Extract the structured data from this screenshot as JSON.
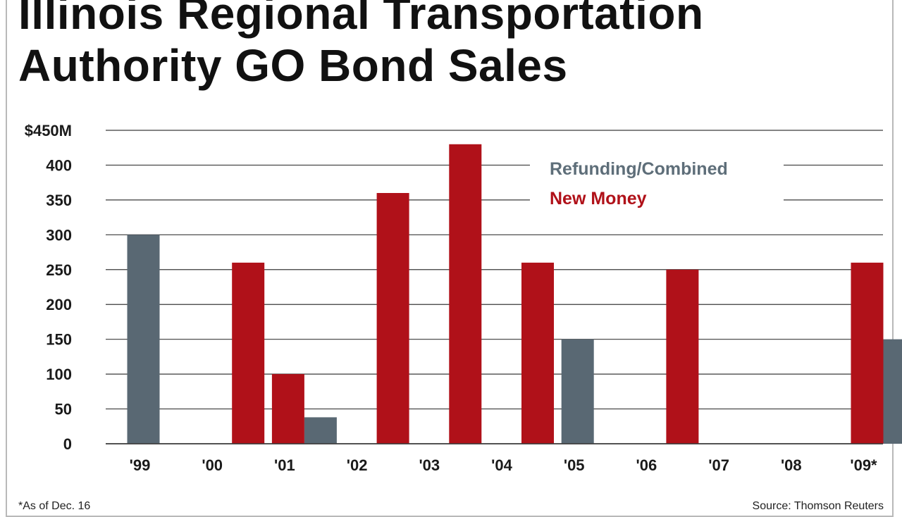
{
  "title_lines": [
    "Illinois Regional Transportation",
    "Authority GO Bond Sales"
  ],
  "footnote": "*As of Dec. 16",
  "source": "Source: Thomson Reuters",
  "colors": {
    "refunding": "#596873",
    "new_money": "#b01119",
    "refunding_text": "#5e6e79",
    "new_money_text": "#b01119",
    "grid": "#3a3a3a"
  },
  "chart_data": {
    "type": "bar",
    "categories": [
      "'99",
      "'00",
      "'01",
      "'02",
      "'03",
      "'04",
      "'05",
      "'06",
      "'07",
      "'08",
      "'09*"
    ],
    "series": [
      {
        "name": "Refunding/Combined",
        "values": [
          300,
          0,
          38,
          0,
          0,
          0,
          150,
          0,
          0,
          0,
          150
        ]
      },
      {
        "name": "New Money",
        "values": [
          0,
          260,
          100,
          360,
          430,
          260,
          0,
          250,
          0,
          0,
          260
        ]
      }
    ],
    "y_ticks": [
      "0",
      "50",
      "100",
      "150",
      "200",
      "250",
      "300",
      "350",
      "400",
      "$450M"
    ],
    "ylim": [
      0,
      450
    ],
    "grid": true,
    "legend_position": "top-right"
  }
}
